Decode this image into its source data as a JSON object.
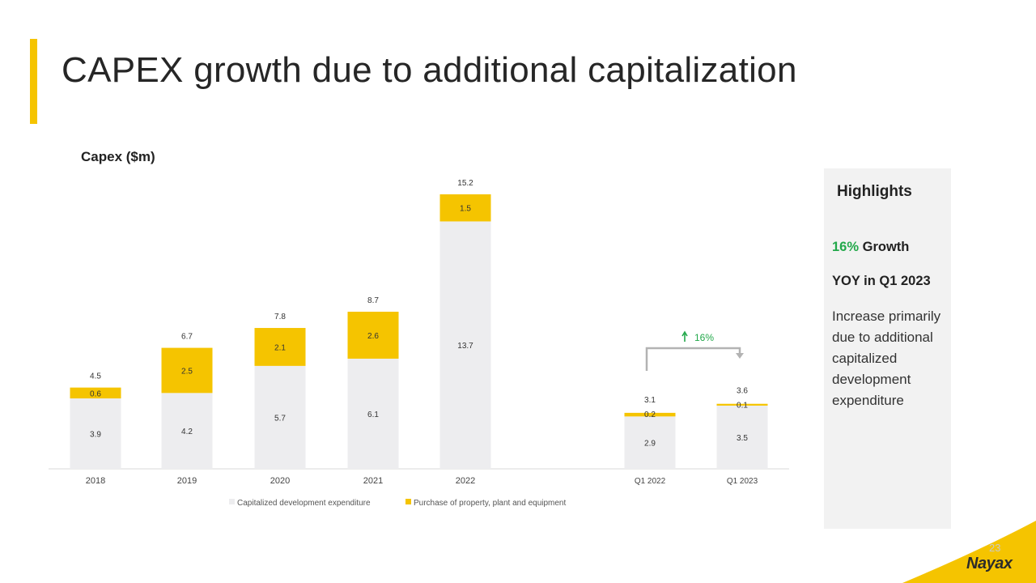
{
  "slide": {
    "title": "CAPEX growth due to additional capitalization",
    "page_number": "23",
    "brand": "Nayax"
  },
  "colors": {
    "accent": "#F5C400",
    "capitalized": "#EDEDEF",
    "ppe": "#F5C400",
    "growth_green": "#22A84A",
    "arrow_gray": "#B3B3B3"
  },
  "highlights": {
    "title": "Highlights",
    "growth_pct": "16%",
    "growth_word": "Growth",
    "period": "YOY in Q1 2023",
    "description": "Increase primarily due to additional capitalized development expenditure"
  },
  "chart_data": {
    "type": "bar",
    "stacked": true,
    "title": "Capex ($m)",
    "categories": [
      "2018",
      "2019",
      "2020",
      "2021",
      "2022",
      "Q1 2022",
      "Q1 2023"
    ],
    "series": [
      {
        "name": "Capitalized development expenditure",
        "values": [
          3.9,
          4.2,
          5.7,
          6.1,
          13.7,
          2.9,
          3.5
        ]
      },
      {
        "name": "Purchase of property, plant and equipment",
        "values": [
          0.6,
          2.5,
          2.1,
          2.6,
          1.5,
          0.2,
          0.1
        ]
      }
    ],
    "totals": [
      4.5,
      6.7,
      7.8,
      8.7,
      15.2,
      3.1,
      3.6
    ],
    "ylim": [
      0,
      15.2
    ],
    "grid": false,
    "legend": "bottom",
    "annotation": {
      "text": "16%",
      "from": "Q1 2022",
      "to": "Q1 2023"
    }
  }
}
